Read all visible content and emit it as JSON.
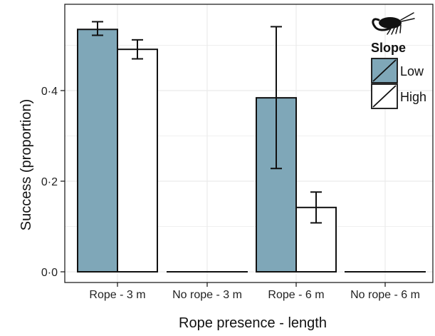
{
  "chart_data": {
    "type": "bar",
    "xlabel": "Rope presence - length",
    "ylabel": "Success (proportion)",
    "ylim": [
      0,
      0.57
    ],
    "yticks": [
      0.0,
      0.2,
      0.4
    ],
    "ytick_labels": [
      "0·0",
      "0·2",
      "0·4"
    ],
    "categories": [
      "Rope - 3 m",
      "No rope - 3 m",
      "Rope - 6 m",
      "No rope - 6 m"
    ],
    "series": [
      {
        "name": "Low",
        "color": "#7fa7b8",
        "values": [
          0.535,
          0.0,
          0.384,
          0.0
        ],
        "err_low": [
          0.522,
          0.0,
          0.228,
          0.0
        ],
        "err_high": [
          0.552,
          0.0,
          0.541,
          0.0
        ]
      },
      {
        "name": "High",
        "color": "#ffffff",
        "values": [
          0.491,
          0.0,
          0.142,
          0.0
        ],
        "err_low": [
          0.47,
          0.0,
          0.108,
          0.0
        ],
        "err_high": [
          0.512,
          0.0,
          0.176,
          0.0
        ]
      }
    ],
    "legend": {
      "title": "Slope",
      "position": "top-right",
      "icon": "shrimp-icon"
    },
    "grid": true,
    "panel_background": "#ffffff",
    "grid_color": "#ebebeb"
  }
}
